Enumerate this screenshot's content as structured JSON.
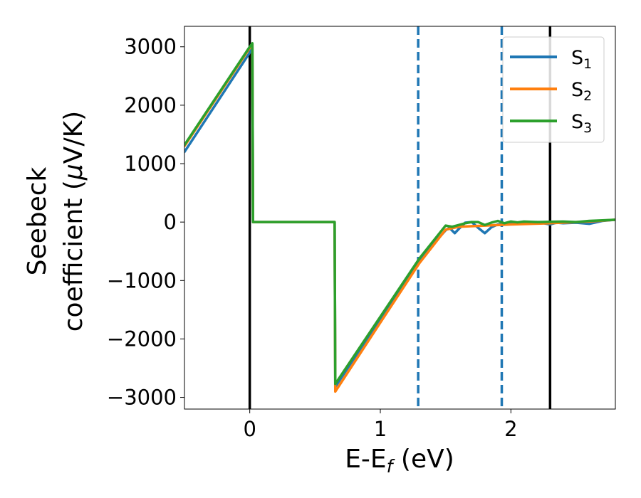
{
  "chart_data": {
    "type": "line",
    "title": "",
    "xlabel": {
      "main": "E-E",
      "sub": "f",
      "suffix": " (eV)"
    },
    "ylabel": {
      "line1": "Seebeck",
      "line2": "coefficient  (",
      "mu": "μ",
      "unit": "V/K)"
    },
    "xlim": [
      -0.5,
      2.8
    ],
    "ylim": [
      -3200,
      3350
    ],
    "xticks": [
      0,
      1,
      2
    ],
    "xtick_labels": [
      "0",
      "1",
      "2"
    ],
    "yticks": [
      3000,
      2000,
      1000,
      0,
      -1000,
      -2000,
      -3000
    ],
    "ytick_labels": [
      "3000",
      "2000",
      "1000",
      "0",
      "−1000",
      "−2000",
      "−3000"
    ],
    "grid": false,
    "legend": {
      "placement": "top-right",
      "entries": [
        "S1",
        "S2",
        "S3"
      ]
    },
    "vlines": [
      {
        "x": 0.0,
        "style": "solid",
        "color": "#000000"
      },
      {
        "x": 2.3,
        "style": "solid",
        "color": "#000000"
      },
      {
        "x": 1.29,
        "style": "dashed",
        "color": "#1f77b4"
      },
      {
        "x": 1.93,
        "style": "dashed",
        "color": "#1f77b4"
      }
    ],
    "series": [
      {
        "name": "S",
        "sub": "1",
        "color": "#1f77b4",
        "x": [
          -0.5,
          0.0,
          0.02,
          0.025,
          0.65,
          0.655,
          1.0,
          1.3,
          1.5,
          1.53,
          1.57,
          1.6,
          1.65,
          1.7,
          1.75,
          1.8,
          1.85,
          1.9,
          1.95,
          2.0,
          2.1,
          2.2,
          2.3,
          2.35,
          2.4,
          2.5,
          2.6,
          2.7,
          2.8
        ],
        "y": [
          1200,
          2900,
          3000,
          0,
          0,
          -2820,
          -1650,
          -640,
          -140,
          -100,
          -190,
          -120,
          -10,
          0,
          -100,
          -190,
          -90,
          -40,
          -30,
          -25,
          -15,
          0,
          -40,
          -10,
          -20,
          -10,
          -30,
          20,
          40
        ]
      },
      {
        "name": "S",
        "sub": "2",
        "color": "#ff7f0e",
        "x": [
          -0.5,
          0.0,
          0.02,
          0.025,
          0.65,
          0.655,
          1.0,
          1.3,
          1.5,
          1.6,
          1.8,
          2.0,
          2.3,
          2.6,
          2.8
        ],
        "y": [
          1300,
          2980,
          3050,
          0,
          0,
          -2900,
          -1720,
          -700,
          -130,
          -80,
          -60,
          -40,
          -20,
          10,
          40
        ]
      },
      {
        "name": "S",
        "sub": "3",
        "color": "#2ca02c",
        "x": [
          -0.5,
          0.0,
          0.02,
          0.025,
          0.65,
          0.655,
          1.0,
          1.3,
          1.5,
          1.55,
          1.6,
          1.65,
          1.7,
          1.75,
          1.8,
          1.85,
          1.9,
          1.95,
          2.0,
          2.05,
          2.1,
          2.2,
          2.3,
          2.4,
          2.5,
          2.6,
          2.7,
          2.8
        ],
        "y": [
          1320,
          3000,
          3060,
          0,
          0,
          -2770,
          -1620,
          -620,
          -60,
          -80,
          -50,
          -20,
          0,
          0,
          -50,
          -10,
          20,
          -20,
          10,
          -5,
          10,
          0,
          5,
          10,
          0,
          20,
          30,
          40
        ]
      }
    ]
  }
}
